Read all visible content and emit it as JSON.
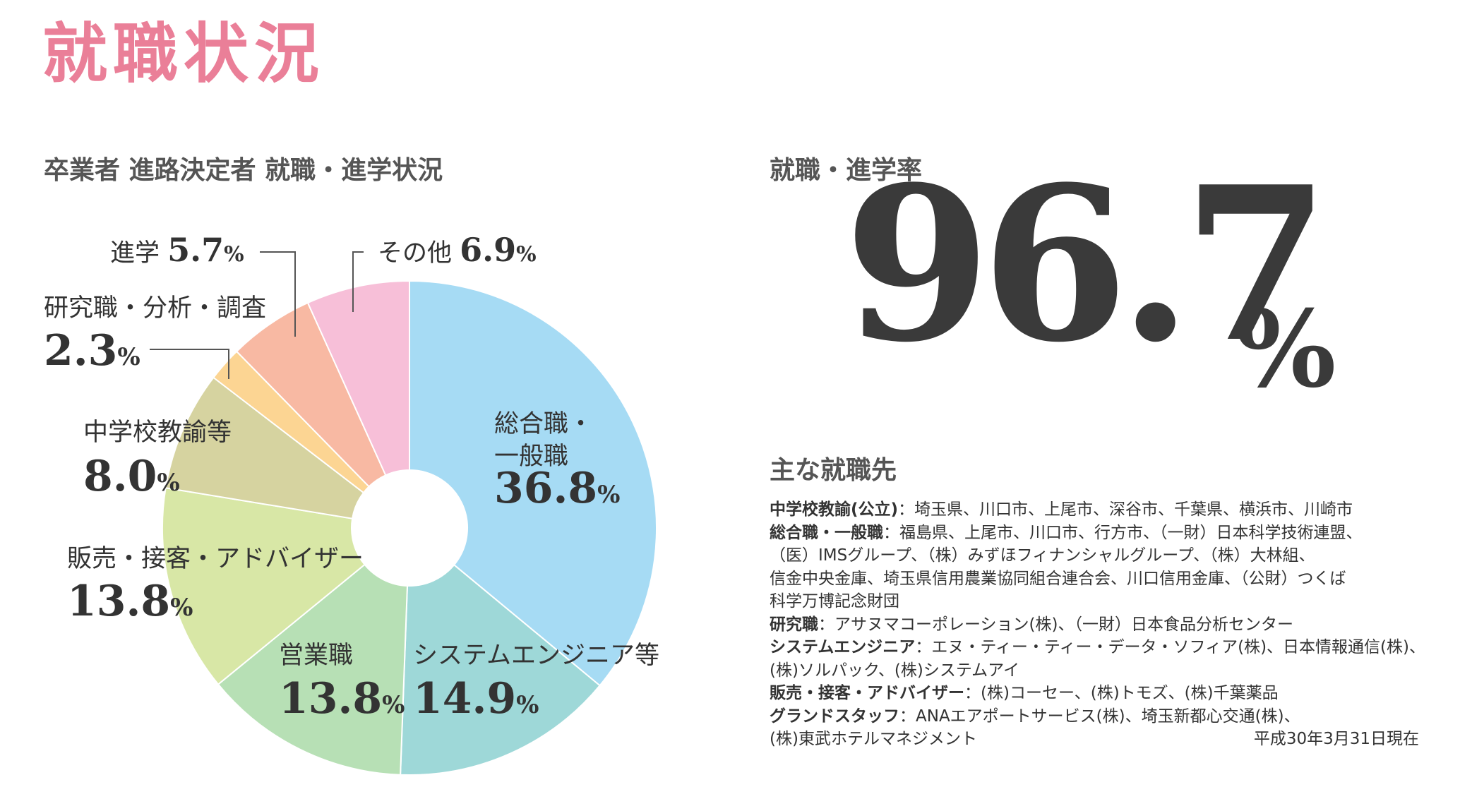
{
  "page": {
    "title": "就職状況"
  },
  "chart_title": "卒業者 進路決定者 就職・進学状況",
  "chart_data": {
    "type": "pie",
    "title": "卒業者 進路決定者 就職・進学状況",
    "unit": "%",
    "donut": true,
    "start": "12 o'clock, clockwise",
    "slices": [
      {
        "label_lines": [
          "総合職・",
          "一般職"
        ],
        "value": 36.8,
        "value_text": "36.8",
        "color": "#a6dbf4"
      },
      {
        "label_lines": [
          "システムエンジニア等"
        ],
        "value": 14.9,
        "value_text": "14.9",
        "color": "#9ed8d8"
      },
      {
        "label_lines": [
          "営業職"
        ],
        "value": 13.8,
        "value_text": "13.8",
        "color": "#b7e0b5"
      },
      {
        "label_lines": [
          "販売・接客・アドバイザー"
        ],
        "value": 13.8,
        "value_text": "13.8",
        "color": "#d8e7a6"
      },
      {
        "label_lines": [
          "中学校教諭等"
        ],
        "value": 8.0,
        "value_text": "8.0",
        "color": "#d6d3a0"
      },
      {
        "label_lines": [
          "研究職・分析・調査"
        ],
        "value": 2.3,
        "value_text": "2.3",
        "color": "#fcd593"
      },
      {
        "label_lines": [
          "進学"
        ],
        "value": 5.7,
        "value_text": "5.7",
        "color": "#f8b9a3"
      },
      {
        "label_lines": [
          "その他"
        ],
        "value": 6.9,
        "value_text": "6.9",
        "color": "#f7bfd8"
      }
    ]
  },
  "rate": {
    "title": "就職・進学率",
    "value": "96.7",
    "unit": "%"
  },
  "employers": {
    "title": "主な就職先",
    "lines": [
      {
        "category": "中学校教諭(公立)",
        "text": "：埼玉県、川口市、上尾市、深谷市、千葉県、横浜市、川崎市"
      },
      {
        "category": "総合職・一般職",
        "text": "：福島県、上尾市、川口市、行方市、（一財）日本科学技術連盟、"
      },
      {
        "category": "",
        "text": "（医）IMSグループ、（株）みずほフィナンシャルグループ、（株）大林組、"
      },
      {
        "category": "",
        "text": "信金中央金庫、埼玉県信用農業協同組合連合会、川口信用金庫、（公財）つくば"
      },
      {
        "category": "",
        "text": "科学万博記念財団"
      },
      {
        "category": "研究職",
        "text": "：アサヌマコーポレーション(株)、（一財）日本食品分析センター"
      },
      {
        "category": "システムエンジニア",
        "text": "：エヌ・ティー・ティー・データ・ソフィア(株)、日本情報通信(株)、"
      },
      {
        "category": "",
        "text": "(株)ソルパック、(株)システムアイ"
      },
      {
        "category": "販売・接客・アドバイザー",
        "text": "：(株)コーセー、(株)トモズ、(株)千葉薬品"
      },
      {
        "category": "グランドスタッフ",
        "text": "：ANAエアポートサービス(株)、埼玉新都心交通(株)、"
      },
      {
        "category": "",
        "text": "(株)東武ホテルマネジメント"
      }
    ],
    "date": "平成30年3月31日現在"
  }
}
